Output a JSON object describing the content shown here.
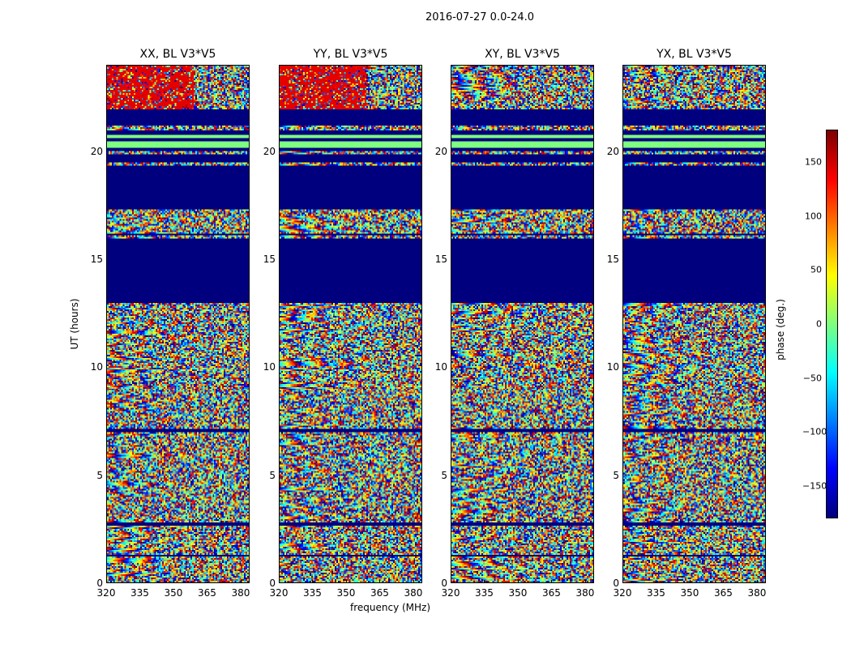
{
  "suptitle": "2016-07-27 0.0-24.0",
  "chart_data": {
    "type": "heatmap",
    "panels": [
      {
        "title": "XX, BL V3*V5"
      },
      {
        "title": "YY, BL V3*V5"
      },
      {
        "title": "XY, BL V3*V5"
      },
      {
        "title": "YX, BL V3*V5"
      }
    ],
    "xlabel": "frequency (MHz)",
    "ylabel": "UT (hours)",
    "xlim": [
      320,
      384
    ],
    "ylim": [
      0,
      24
    ],
    "xticks": [
      "320",
      "335",
      "350",
      "365",
      "380"
    ],
    "yticks": [
      "0",
      "5",
      "10",
      "15",
      "20"
    ],
    "colorbar": {
      "label": "phase (deg.)",
      "range": [
        -180,
        180
      ],
      "ticks": [
        "150",
        "100",
        "50",
        "0",
        "−50",
        "−100",
        "−150"
      ],
      "colormap": "jet"
    },
    "uniform_bands_hours": [
      {
        "from": 13.0,
        "to": 16.0,
        "phase": -180
      },
      {
        "from": 16.1,
        "to": 16.2,
        "phase": -180
      },
      {
        "from": 17.35,
        "to": 19.35,
        "phase": -180
      },
      {
        "from": 19.5,
        "to": 19.85,
        "phase": -180
      },
      {
        "from": 20.05,
        "to": 20.2,
        "phase": -180
      },
      {
        "from": 20.2,
        "to": 20.5,
        "phase": 0
      },
      {
        "from": 20.5,
        "to": 20.6,
        "phase": -180
      },
      {
        "from": 20.6,
        "to": 20.75,
        "phase": 0
      },
      {
        "from": 20.75,
        "to": 21.0,
        "phase": -180
      },
      {
        "from": 21.2,
        "to": 22.0,
        "phase": -180
      },
      {
        "from": 7.0,
        "to": 7.1,
        "phase": -180
      },
      {
        "from": 2.6,
        "to": 2.75,
        "phase": -180
      },
      {
        "from": 1.2,
        "to": 1.3,
        "phase": -180
      }
    ]
  }
}
